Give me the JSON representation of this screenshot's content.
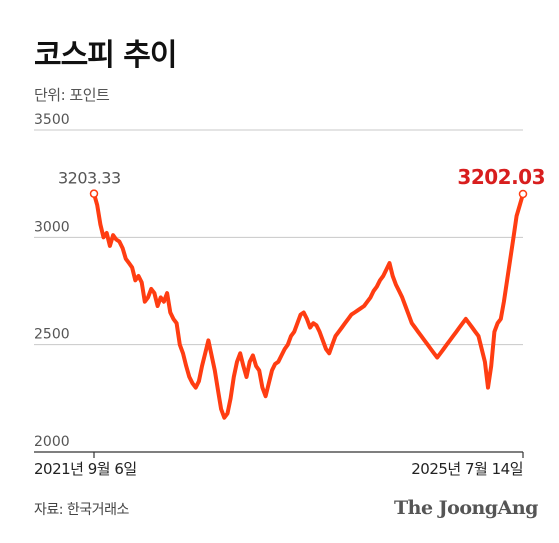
{
  "header": {
    "title": "코스피 추이",
    "unit": "단위: 포인트"
  },
  "footer": {
    "source": "자료: 한국거래소",
    "brand": "The JoongAng"
  },
  "colors": {
    "line": "#ff3d12",
    "end_label": "#d81e1e",
    "start_label": "#555555",
    "grid": "#c8c8c8",
    "axis": "#333333"
  },
  "chart_data": {
    "type": "line",
    "title": "코스피 추이",
    "ylabel": "단위: 포인트",
    "ylim": [
      2000,
      3500
    ],
    "yticks": [
      2000,
      2500,
      3000,
      3500
    ],
    "ytick_labels": [
      "2000",
      "2500",
      "3000",
      "3500"
    ],
    "grid": true,
    "x_start_label": "2021년 9월 6일",
    "x_end_label": "2025년 7월 14일",
    "annotations": [
      {
        "label": "3203.33",
        "value": 3203.33,
        "position": "start"
      },
      {
        "label": "3202.03",
        "value": 3202.03,
        "position": "end"
      }
    ],
    "series": [
      {
        "values": [
          3203.33,
          3150,
          3060,
          3000,
          3020,
          2960,
          3010,
          2990,
          2980,
          2950,
          2900,
          2880,
          2860,
          2800,
          2820,
          2790,
          2700,
          2720,
          2760,
          2740,
          2680,
          2720,
          2700,
          2740,
          2650,
          2620,
          2600,
          2500,
          2460,
          2400,
          2350,
          2320,
          2300,
          2330,
          2400,
          2460,
          2520,
          2450,
          2380,
          2290,
          2200,
          2160,
          2180,
          2250,
          2350,
          2420,
          2460,
          2400,
          2350,
          2420,
          2450,
          2400,
          2380,
          2300,
          2260,
          2320,
          2380,
          2410,
          2420,
          2450,
          2480,
          2500,
          2540,
          2560,
          2600,
          2640,
          2650,
          2620,
          2580,
          2600,
          2590,
          2560,
          2520,
          2480,
          2460,
          2500,
          2540,
          2560,
          2580,
          2600,
          2620,
          2640,
          2650,
          2660,
          2670,
          2680,
          2700,
          2720,
          2750,
          2770,
          2800,
          2820,
          2850,
          2880,
          2820,
          2780,
          2750,
          2720,
          2680,
          2640,
          2600,
          2580,
          2560,
          2540,
          2520,
          2500,
          2480,
          2460,
          2440,
          2460,
          2480,
          2500,
          2520,
          2540,
          2560,
          2580,
          2600,
          2620,
          2600,
          2580,
          2560,
          2540,
          2480,
          2420,
          2300,
          2400,
          2560,
          2600,
          2620,
          2700,
          2800,
          2900,
          3000,
          3100,
          3150,
          3202.03
        ]
      }
    ]
  }
}
